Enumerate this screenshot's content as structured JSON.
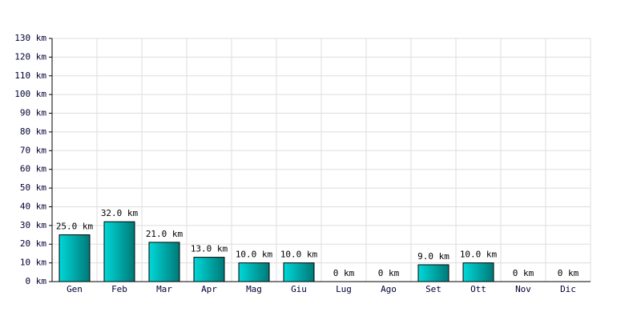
{
  "chart_data": {
    "type": "bar",
    "categories": [
      "Gen",
      "Feb",
      "Mar",
      "Apr",
      "Mag",
      "Giu",
      "Lug",
      "Ago",
      "Set",
      "Ott",
      "Nov",
      "Dic"
    ],
    "values": [
      25,
      32,
      21,
      13,
      10,
      10,
      0,
      0,
      9,
      10,
      0,
      0
    ],
    "value_labels": [
      "25.0 km",
      "32.0 km",
      "21.0 km",
      "13.0 km",
      "10.0 km",
      "10.0 km",
      "0 km",
      "0 km",
      "9.0 km",
      "10.0 km",
      "0 km",
      "0 km"
    ],
    "color": "#00d8d8",
    "ylim": [
      0,
      130
    ],
    "yticks": [
      {
        "value": 0,
        "label": "0 km"
      },
      {
        "value": 10,
        "label": "10 km"
      },
      {
        "value": 20,
        "label": "20 km"
      },
      {
        "value": 30,
        "label": "30 km"
      },
      {
        "value": 40,
        "label": "40 km"
      },
      {
        "value": 50,
        "label": "50 km"
      },
      {
        "value": 60,
        "label": "60 km"
      },
      {
        "value": 70,
        "label": "70 km"
      },
      {
        "value": 80,
        "label": "80 km"
      },
      {
        "value": 90,
        "label": "90 km"
      },
      {
        "value": 100,
        "label": "100 km"
      },
      {
        "value": 110,
        "label": "110 km"
      },
      {
        "value": 120,
        "label": "120 km"
      },
      {
        "value": 130,
        "label": "130 km"
      }
    ],
    "grid": true
  }
}
